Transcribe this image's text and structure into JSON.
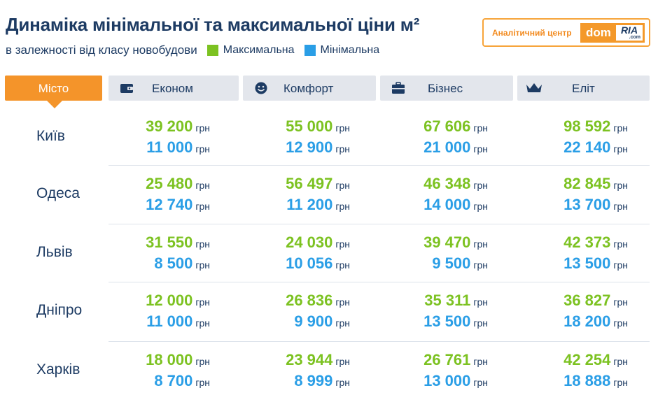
{
  "header": {
    "title": "Динаміка мінімальної та максимальної ціни м²",
    "subtitle": "в залежності від класу новобудови",
    "legend": [
      {
        "label": "Максимальна",
        "color": "#7cc221"
      },
      {
        "label": "Мінімальна",
        "color": "#2a9ee6"
      }
    ]
  },
  "brand": {
    "caption": "Аналітичний центр",
    "logo_dom": "dom",
    "logo_ria": "RIA",
    "logo_com": ".com"
  },
  "table": {
    "city_header": "Місто",
    "unit": "грн",
    "columns": [
      {
        "label": "Економ",
        "icon": "wallet-icon"
      },
      {
        "label": "Комфорт",
        "icon": "smiley-icon"
      },
      {
        "label": "Бізнес",
        "icon": "briefcase-icon"
      },
      {
        "label": "Еліт",
        "icon": "crown-icon"
      }
    ],
    "rows": [
      {
        "city": "Київ",
        "max": [
          "39 200",
          "55 000",
          "67 606",
          "98 592"
        ],
        "min": [
          "11 000",
          "12 900",
          "21 000",
          "22 140"
        ]
      },
      {
        "city": "Одеса",
        "max": [
          "25 480",
          "56 497",
          "46 348",
          "82 845"
        ],
        "min": [
          "12 740",
          "11 200",
          "14 000",
          "13 700"
        ]
      },
      {
        "city": "Львів",
        "max": [
          "31 550",
          "24 030",
          "39 470",
          "42 373"
        ],
        "min": [
          "8 500",
          "10 056",
          "9 500",
          "13 500"
        ]
      },
      {
        "city": "Дніпро",
        "max": [
          "12 000",
          "26 836",
          "35 311",
          "36 827"
        ],
        "min": [
          "11 000",
          "9 900",
          "13 500",
          "18 200"
        ]
      },
      {
        "city": "Харків",
        "max": [
          "18 000",
          "23 944",
          "26 761",
          "42 254"
        ],
        "min": [
          "8 700",
          "8 999",
          "13 000",
          "18 888"
        ]
      }
    ]
  },
  "colors": {
    "max": "#7cc221",
    "min": "#2a9ee6",
    "accent": "#f4942a",
    "text": "#1d3b63"
  }
}
